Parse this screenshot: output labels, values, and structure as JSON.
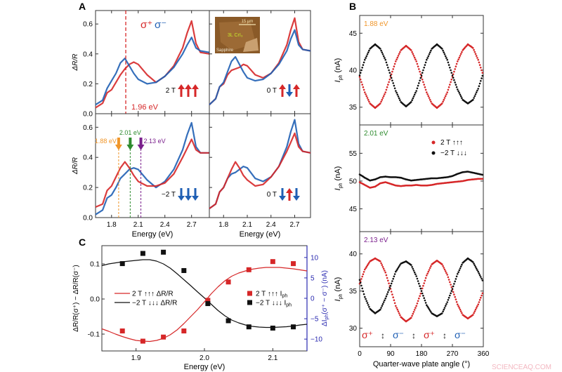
{
  "watermark": "SCIENCEAQ.COM",
  "colors": {
    "red": "#d62728",
    "blue": "#1f5fb4",
    "black": "#111111",
    "orange": "#f0962a",
    "green": "#2e8b2e",
    "purple": "#7a1f8c",
    "right_axis": "#2a2ab0"
  },
  "chart_data": [
    {
      "panel": "A",
      "type": "line",
      "xlabel": "Energy (eV)",
      "ylabel": "ΔR/R",
      "xlim": [
        1.62,
        2.9
      ],
      "ylim": [
        0,
        0.69
      ],
      "xticks": [
        1.8,
        2.1,
        2.4,
        2.7
      ],
      "yticks": [
        0.0,
        0.2,
        0.4,
        0.6
      ],
      "legend": [
        "σ⁺",
        "σ⁻"
      ],
      "energies": [
        1.62,
        1.7,
        1.75,
        1.8,
        1.85,
        1.9,
        1.95,
        2.0,
        2.05,
        2.1,
        2.2,
        2.3,
        2.4,
        2.5,
        2.6,
        2.65,
        2.7,
        2.75,
        2.8,
        2.9
      ],
      "inset": {
        "scale_bar": "15 μm",
        "sample": "3L CrI₃",
        "substrate": "Sapphire"
      },
      "subplots": [
        {
          "field": "2 T",
          "spins": [
            "up",
            "up",
            "up"
          ],
          "annotation": "1.96 eV",
          "marker_energy": 1.96,
          "sigma_plus": [
            0.04,
            0.07,
            0.14,
            0.16,
            0.21,
            0.26,
            0.3,
            0.33,
            0.345,
            0.33,
            0.26,
            0.21,
            0.25,
            0.32,
            0.44,
            0.54,
            0.62,
            0.47,
            0.41,
            0.4
          ],
          "sigma_minus": [
            0.06,
            0.09,
            0.17,
            0.22,
            0.27,
            0.34,
            0.37,
            0.32,
            0.27,
            0.23,
            0.2,
            0.21,
            0.25,
            0.31,
            0.4,
            0.46,
            0.51,
            0.44,
            0.42,
            0.41
          ]
        },
        {
          "field": "0 T",
          "spins": [
            "up",
            "down",
            "up"
          ],
          "sigma_plus": [
            0.06,
            0.1,
            0.18,
            0.2,
            0.26,
            0.29,
            0.3,
            0.31,
            0.33,
            0.32,
            0.26,
            0.24,
            0.27,
            0.34,
            0.46,
            0.56,
            0.64,
            0.48,
            0.43,
            0.42
          ],
          "sigma_minus": [
            0.06,
            0.1,
            0.18,
            0.21,
            0.28,
            0.35,
            0.38,
            0.33,
            0.28,
            0.24,
            0.22,
            0.23,
            0.27,
            0.33,
            0.42,
            0.5,
            0.56,
            0.46,
            0.43,
            0.42
          ]
        },
        {
          "field": "−2 T",
          "spins": [
            "down",
            "down",
            "down"
          ],
          "markers": [
            {
              "label": "1.88 eV",
              "energy": 1.88,
              "color": "orange"
            },
            {
              "label": "2.01 eV",
              "energy": 2.01,
              "color": "green"
            },
            {
              "label": "2.13 eV",
              "energy": 2.13,
              "color": "purple"
            }
          ],
          "sigma_plus": [
            0.07,
            0.09,
            0.18,
            0.21,
            0.27,
            0.33,
            0.37,
            0.33,
            0.28,
            0.24,
            0.21,
            0.21,
            0.23,
            0.29,
            0.4,
            0.46,
            0.52,
            0.45,
            0.43,
            0.43
          ],
          "sigma_minus": [
            0.02,
            0.05,
            0.13,
            0.15,
            0.2,
            0.26,
            0.29,
            0.32,
            0.33,
            0.32,
            0.25,
            0.2,
            0.24,
            0.32,
            0.45,
            0.55,
            0.63,
            0.47,
            0.43,
            0.43
          ]
        },
        {
          "field": "0 T",
          "spins": [
            "down",
            "up",
            "down"
          ],
          "sigma_plus": [
            0.06,
            0.09,
            0.17,
            0.2,
            0.26,
            0.32,
            0.37,
            0.33,
            0.28,
            0.25,
            0.21,
            0.22,
            0.27,
            0.34,
            0.44,
            0.5,
            0.56,
            0.47,
            0.44,
            0.43
          ],
          "sigma_minus": [
            0.06,
            0.09,
            0.17,
            0.2,
            0.26,
            0.29,
            0.3,
            0.32,
            0.34,
            0.33,
            0.26,
            0.24,
            0.27,
            0.34,
            0.47,
            0.57,
            0.65,
            0.49,
            0.44,
            0.43
          ]
        }
      ]
    },
    {
      "panel": "B",
      "type": "scatter",
      "xlabel": "Quarter-wave plate angle (°)",
      "ylabel": "I",
      "ylabel_sub": "ph",
      "ylabel_unit": " (nA)",
      "xlim": [
        0,
        360
      ],
      "xticks": [
        0,
        90,
        180,
        270,
        360
      ],
      "angles": [
        0,
        15,
        30,
        45,
        60,
        75,
        90,
        105,
        120,
        135,
        150,
        165,
        180,
        195,
        210,
        225,
        240,
        255,
        270,
        285,
        300,
        315,
        330,
        345,
        360
      ],
      "legend": [
        {
          "label": "2 T ↑↑↑",
          "color": "red"
        },
        {
          "label": "−2 T ↓↓↓",
          "color": "black"
        }
      ],
      "polarization_labels": [
        "σ⁺",
        "↕",
        "σ⁻",
        "↕",
        "σ⁺",
        "↕",
        "σ⁻"
      ],
      "subplots": [
        {
          "energy": "1.88 eV",
          "ylim": [
            32.6,
            47.4
          ],
          "yticks": [
            35,
            40,
            45
          ],
          "red": [
            39.1,
            37.0,
            35.5,
            34.9,
            35.5,
            37.0,
            39.1,
            41.2,
            42.7,
            43.3,
            42.7,
            41.2,
            39.1,
            37.0,
            35.5,
            34.9,
            35.5,
            37.0,
            39.1,
            41.2,
            42.7,
            43.5,
            43.0,
            41.4,
            39.3
          ],
          "black": [
            39.3,
            41.4,
            42.9,
            43.5,
            42.9,
            41.4,
            39.3,
            37.2,
            35.7,
            35.1,
            35.7,
            37.2,
            39.3,
            41.4,
            42.9,
            43.5,
            42.9,
            41.4,
            39.3,
            37.4,
            36.0,
            35.5,
            36.0,
            37.5,
            39.6
          ]
        },
        {
          "energy": "2.01 eV",
          "ylim": [
            40.9,
            60.1
          ],
          "yticks": [
            45,
            50,
            55
          ],
          "red": [
            49.8,
            49.3,
            48.8,
            49.0,
            49.6,
            49.8,
            49.5,
            49.2,
            49.1,
            49.2,
            49.2,
            49.3,
            49.2,
            49.2,
            49.3,
            49.5,
            49.6,
            49.7,
            49.8,
            49.9,
            50.0,
            50.2,
            50.3,
            50.4,
            50.4
          ],
          "black": [
            51.2,
            50.6,
            50.1,
            50.3,
            50.7,
            50.8,
            50.7,
            50.7,
            50.6,
            50.3,
            50.1,
            50.2,
            50.3,
            50.4,
            50.5,
            50.5,
            50.6,
            50.7,
            50.9,
            51.3,
            51.6,
            51.7,
            51.5,
            51.3,
            51.1
          ]
        },
        {
          "energy": "2.13 eV",
          "ylim": [
            27.5,
            43.0
          ],
          "yticks": [
            30,
            35,
            40
          ],
          "red": [
            36.0,
            37.9,
            39.0,
            39.4,
            39.0,
            37.5,
            35.3,
            33.0,
            31.5,
            30.9,
            31.4,
            33.0,
            35.0,
            37.1,
            38.6,
            39.1,
            38.6,
            37.2,
            35.2,
            33.2,
            31.8,
            31.3,
            31.8,
            33.2,
            35.0
          ],
          "black": [
            36.5,
            34.2,
            32.6,
            32.0,
            32.5,
            34.0,
            35.7,
            37.6,
            38.7,
            39.0,
            38.5,
            37.0,
            35.0,
            33.1,
            32.0,
            31.6,
            32.0,
            33.5,
            35.3,
            37.3,
            38.8,
            39.4,
            38.9,
            37.6,
            36.2
          ]
        }
      ]
    },
    {
      "panel": "C",
      "type": "line",
      "xlabel": "Energy (eV)",
      "ylabel": "ΔR/R(σ⁺) − ΔR/R(σ⁻)",
      "ylabel_right": "ΔI",
      "ylabel_right_sub": "ph",
      "ylabel_right_tail": "(σ⁺ − σ⁻) (nA)",
      "xlim": [
        1.85,
        2.15
      ],
      "ylim": [
        -0.148,
        0.152
      ],
      "ylim_right": [
        -12.9,
        12.9
      ],
      "xticks": [
        1.9,
        2.0,
        2.1
      ],
      "yticks": [
        -0.1,
        0.0,
        0.1
      ],
      "yticks_right": [
        -10,
        -5,
        0,
        5,
        10
      ],
      "x": [
        1.85,
        1.86,
        1.87,
        1.88,
        1.89,
        1.9,
        1.91,
        1.92,
        1.93,
        1.94,
        1.95,
        1.96,
        1.97,
        1.98,
        1.99,
        2.0,
        2.01,
        2.02,
        2.03,
        2.04,
        2.05,
        2.06,
        2.07,
        2.08,
        2.09,
        2.1,
        2.11,
        2.12,
        2.13,
        2.14,
        2.15
      ],
      "series": [
        {
          "name": "2 T ↑↑↑ ΔR/R",
          "color": "red",
          "values": [
            -0.085,
            -0.092,
            -0.1,
            -0.107,
            -0.113,
            -0.118,
            -0.12,
            -0.121,
            -0.118,
            -0.112,
            -0.102,
            -0.088,
            -0.07,
            -0.05,
            -0.03,
            -0.008,
            0.015,
            0.035,
            0.052,
            0.065,
            0.074,
            0.08,
            0.085,
            0.088,
            0.09,
            0.09,
            0.09,
            0.088,
            0.086,
            0.083,
            0.08
          ]
        },
        {
          "name": "−2 T ↓↓↓ ΔR/R",
          "color": "black",
          "values": [
            0.095,
            0.1,
            0.103,
            0.106,
            0.108,
            0.11,
            0.112,
            0.112,
            0.108,
            0.1,
            0.088,
            0.072,
            0.055,
            0.038,
            0.02,
            0.003,
            -0.015,
            -0.033,
            -0.048,
            -0.06,
            -0.068,
            -0.074,
            -0.078,
            -0.08,
            -0.081,
            -0.081,
            -0.08,
            -0.079,
            -0.077,
            -0.074,
            -0.072
          ]
        }
      ],
      "points": [
        {
          "name": "2 T ↑↑↑ I",
          "sub": "ph",
          "color": "red",
          "x": [
            1.88,
            1.91,
            1.94,
            1.97,
            2.005,
            2.035,
            2.065,
            2.1,
            2.13
          ],
          "y": [
            -8,
            -10.5,
            -9.5,
            -8,
            -0.5,
            4,
            7,
            9,
            8.5
          ]
        },
        {
          "name": "−2 T ↓↓↓ I",
          "sub": "ph",
          "color": "black",
          "x": [
            1.88,
            1.91,
            1.94,
            1.97,
            2.005,
            2.035,
            2.065,
            2.1,
            2.13
          ],
          "y": [
            8.5,
            11,
            11.3,
            6.8,
            -1.3,
            -5.5,
            -7,
            -7.3,
            -7
          ]
        }
      ]
    }
  ]
}
